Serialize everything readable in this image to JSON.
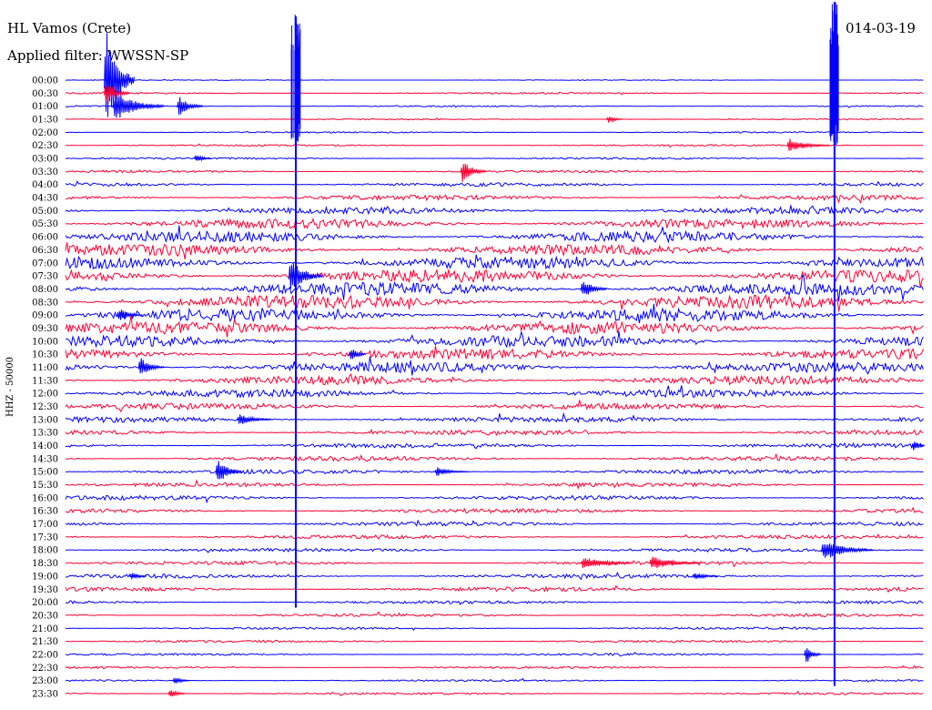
{
  "header": {
    "station": "HL Vamos (Crete)",
    "filter": "Applied filter: WWSSN-SP",
    "date": "014-03-19"
  },
  "chart_data": {
    "type": "line",
    "title": "",
    "ylabel": "HHZ - 50000",
    "xlabel": "",
    "row_labels": [
      "00:00",
      "00:30",
      "01:00",
      "01:30",
      "02:00",
      "02:30",
      "03:00",
      "03:30",
      "04:00",
      "04:30",
      "05:00",
      "05:30",
      "06:00",
      "06:30",
      "07:00",
      "07:30",
      "08:00",
      "08:30",
      "09:00",
      "09:30",
      "10:00",
      "10:30",
      "11:00",
      "11:30",
      "12:00",
      "12:30",
      "13:00",
      "13:30",
      "14:00",
      "14:30",
      "15:00",
      "15:30",
      "16:00",
      "16:30",
      "17:00",
      "17:30",
      "18:00",
      "18:30",
      "19:00",
      "19:30",
      "20:00",
      "20:30",
      "21:00",
      "21:30",
      "22:00",
      "22:30",
      "23:00",
      "23:30"
    ],
    "row_noise": [
      0.3,
      0.7,
      0.6,
      0.5,
      0.6,
      0.7,
      0.8,
      1.0,
      1.5,
      2.2,
      2.8,
      4.2,
      4.6,
      4.8,
      5.2,
      5.6,
      5.7,
      5.9,
      5.6,
      5.2,
      5.0,
      4.6,
      4.4,
      3.8,
      3.2,
      2.6,
      2.4,
      2.1,
      2.0,
      1.9,
      1.8,
      1.7,
      1.9,
      1.8,
      1.7,
      1.6,
      1.5,
      1.6,
      1.7,
      1.8,
      1.3,
      1.2,
      1.0,
      1.0,
      0.9,
      0.9,
      0.8,
      0.9
    ],
    "row_spacing": 14.34,
    "colors": [
      "#0000ff",
      "#ff0033"
    ],
    "events": [
      {
        "time": "00:00",
        "x": 0.045,
        "amp": 70,
        "dur": 0.035,
        "col": "#0000ff"
      },
      {
        "time": "00:30",
        "x": 0.045,
        "amp": 18,
        "dur": 0.03,
        "col": "#ff0033"
      },
      {
        "time": "01:00",
        "x": 0.055,
        "amp": 20,
        "dur": 0.06,
        "col": "#0000ff"
      },
      {
        "time": "01:00",
        "x": 0.13,
        "amp": 14,
        "dur": 0.03,
        "col": "#0000ff"
      },
      {
        "time": "01:30",
        "x": 0.63,
        "amp": 6,
        "dur": 0.02,
        "col": "#ff0033"
      },
      {
        "time": "02:30",
        "x": 0.84,
        "amp": 9,
        "dur": 0.05,
        "col": "#ff0033"
      },
      {
        "time": "03:00",
        "x": 0.15,
        "amp": 7,
        "dur": 0.02,
        "col": "#0000ff"
      },
      {
        "time": "03:30",
        "x": 0.46,
        "amp": 16,
        "dur": 0.03,
        "col": "#ff0033"
      },
      {
        "time": "07:30",
        "x": 0.26,
        "amp": 22,
        "dur": 0.04,
        "col": "#0000ff"
      },
      {
        "time": "08:00",
        "x": 0.6,
        "amp": 14,
        "dur": 0.03,
        "col": "#0000ff"
      },
      {
        "time": "09:00",
        "x": 0.06,
        "amp": 10,
        "dur": 0.03,
        "col": "#0000ff"
      },
      {
        "time": "10:30",
        "x": 0.33,
        "amp": 12,
        "dur": 0.02,
        "col": "#0000ff"
      },
      {
        "time": "11:00",
        "x": 0.085,
        "amp": 14,
        "dur": 0.03,
        "col": "#0000ff"
      },
      {
        "time": "13:00",
        "x": 0.2,
        "amp": 8,
        "dur": 0.04,
        "col": "#0000ff"
      },
      {
        "time": "14:00",
        "x": 0.985,
        "amp": 10,
        "dur": 0.015,
        "col": "#0000ff"
      },
      {
        "time": "15:00",
        "x": 0.175,
        "amp": 18,
        "dur": 0.03,
        "col": "#0000ff"
      },
      {
        "time": "15:00",
        "x": 0.43,
        "amp": 6,
        "dur": 0.04,
        "col": "#0000ff"
      },
      {
        "time": "18:00",
        "x": 0.88,
        "amp": 14,
        "dur": 0.06,
        "col": "#0000ff"
      },
      {
        "time": "18:30",
        "x": 0.6,
        "amp": 9,
        "dur": 0.06,
        "col": "#ff0033"
      },
      {
        "time": "18:30",
        "x": 0.68,
        "amp": 9,
        "dur": 0.06,
        "col": "#ff0033"
      },
      {
        "time": "19:00",
        "x": 0.075,
        "amp": 6,
        "dur": 0.02,
        "col": "#0000ff"
      },
      {
        "time": "19:00",
        "x": 0.73,
        "amp": 6,
        "dur": 0.03,
        "col": "#0000ff"
      },
      {
        "time": "22:00",
        "x": 0.86,
        "amp": 14,
        "dur": 0.02,
        "col": "#0000ff"
      },
      {
        "time": "23:00",
        "x": 0.125,
        "amp": 7,
        "dur": 0.02,
        "col": "#0000ff"
      },
      {
        "time": "23:30",
        "x": 0.12,
        "amp": 8,
        "dur": 0.02,
        "col": "#ff0033"
      }
    ],
    "spikes": [
      {
        "x": 0.268,
        "from_row": 0,
        "to_row": 40,
        "peak": 70,
        "col": "#0000ff"
      },
      {
        "x": 0.895,
        "from_row": 0,
        "to_row": 46,
        "peak": 95,
        "col": "#0000ff"
      }
    ]
  }
}
